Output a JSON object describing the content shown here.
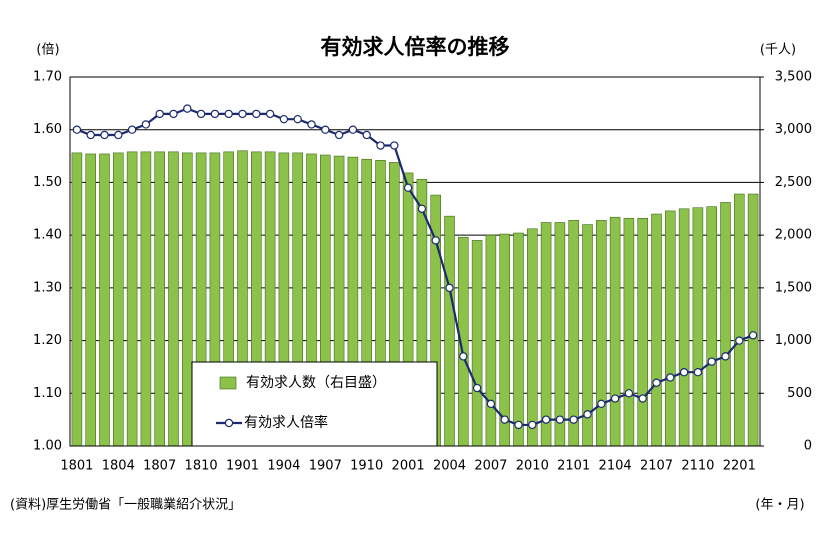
{
  "chart_data": {
    "type": "combo",
    "title": "有効求人倍率の推移",
    "y_label": "(倍)",
    "y2_label": "(千人)",
    "x_label": "(年・月)",
    "note": "(資料)厚生労働省「一般職業紹介状況」",
    "categories": [
      "1801",
      null,
      null,
      "1804",
      null,
      null,
      "1807",
      null,
      null,
      "1810",
      null,
      null,
      "1901",
      null,
      null,
      "1904",
      null,
      null,
      "1907",
      null,
      null,
      "1910",
      null,
      null,
      "2001",
      null,
      null,
      "2004",
      null,
      null,
      "2007",
      null,
      null,
      "2010",
      null,
      null,
      "2101",
      null,
      null,
      "2104",
      null,
      null,
      "2107",
      null,
      null,
      "2110",
      null,
      null,
      "2201",
      null
    ],
    "series": [
      {
        "name": "有効求人数（右目盛）",
        "type": "bar",
        "axis": "y2",
        "color": "#8dc24a",
        "values": [
          2780,
          2770,
          2770,
          2780,
          2790,
          2790,
          2790,
          2790,
          2780,
          2780,
          2780,
          2790,
          2800,
          2790,
          2790,
          2780,
          2780,
          2770,
          2760,
          2750,
          2740,
          2720,
          2710,
          2690,
          2590,
          2530,
          2380,
          2180,
          1980,
          1950,
          2000,
          2010,
          2020,
          2060,
          2120,
          2120,
          2140,
          2100,
          2140,
          2170,
          2160,
          2160,
          2200,
          2230,
          2250,
          2260,
          2270,
          2310,
          2390,
          2390
        ]
      },
      {
        "name": "有効求人倍率",
        "type": "line",
        "color": "#1c2a6e",
        "values": [
          1.6,
          1.59,
          1.59,
          1.59,
          1.6,
          1.61,
          1.63,
          1.63,
          1.64,
          1.63,
          1.63,
          1.63,
          1.63,
          1.63,
          1.63,
          1.62,
          1.62,
          1.61,
          1.6,
          1.59,
          1.6,
          1.59,
          1.57,
          1.57,
          1.49,
          1.45,
          1.39,
          1.3,
          1.17,
          1.11,
          1.08,
          1.05,
          1.04,
          1.04,
          1.05,
          1.05,
          1.05,
          1.06,
          1.08,
          1.09,
          1.1,
          1.09,
          1.12,
          1.13,
          1.14,
          1.14,
          1.16,
          1.17,
          1.2,
          1.21
        ]
      }
    ],
    "ylim": [
      1.0,
      1.7
    ],
    "yticks": [
      {
        "value": 1.0,
        "label": "1.00"
      },
      {
        "value": 1.1,
        "label": "1.10"
      },
      {
        "value": 1.2,
        "label": "1.20"
      },
      {
        "value": 1.3,
        "label": "1.30"
      },
      {
        "value": 1.4,
        "label": "1.40"
      },
      {
        "value": 1.5,
        "label": "1.50"
      },
      {
        "value": 1.6,
        "label": "1.60"
      },
      {
        "value": 1.7,
        "label": "1.70"
      }
    ],
    "y2lim": [
      0,
      3500
    ],
    "y2ticks": [
      0,
      500,
      {
        "value": 1000,
        "label": "1,000"
      },
      {
        "value": 1500,
        "label": "1,500"
      },
      {
        "value": 2000,
        "label": "2,000"
      },
      {
        "value": 2500,
        "label": "2,500"
      },
      {
        "value": 3000,
        "label": "3,000"
      },
      {
        "value": 3500,
        "label": "3,500"
      }
    ],
    "grid": true,
    "legend": "lower left"
  }
}
